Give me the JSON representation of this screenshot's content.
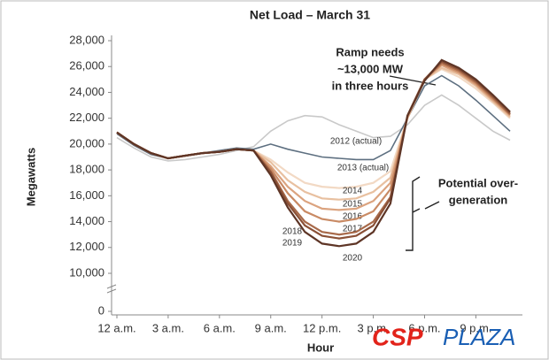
{
  "chart_data": {
    "type": "line",
    "title": "Net Load – March 31",
    "x_label": "Hour",
    "y_label": "Megawatts",
    "x": [
      0,
      1,
      2,
      3,
      4,
      5,
      6,
      7,
      8,
      9,
      10,
      11,
      12,
      13,
      14,
      15,
      16,
      17,
      18,
      19,
      20,
      21,
      22,
      23
    ],
    "xlim": [
      0,
      23
    ],
    "xticks": [
      {
        "value": 0,
        "label": "12 a.m."
      },
      {
        "value": 3,
        "label": "3 a.m."
      },
      {
        "value": 6,
        "label": "6 a.m."
      },
      {
        "value": 9,
        "label": "9 a.m."
      },
      {
        "value": 12,
        "label": "12 p.m."
      },
      {
        "value": 15,
        "label": "3 p.m."
      },
      {
        "value": 18,
        "label": "6 p.m."
      },
      {
        "value": 21,
        "label": "9 p.m."
      }
    ],
    "ylim": [
      0,
      28000
    ],
    "axis_break": true,
    "yticks": [
      0,
      {
        "value": 10000,
        "label": "10,000"
      },
      {
        "value": 12000,
        "label": "12,000"
      },
      {
        "value": 14000,
        "label": "14,000"
      },
      {
        "value": 16000,
        "label": "16,000"
      },
      {
        "value": 18000,
        "label": "18,000"
      },
      {
        "value": 20000,
        "label": "20,000"
      },
      {
        "value": 22000,
        "label": "22,000"
      },
      {
        "value": 24000,
        "label": "24,000"
      },
      {
        "value": 26000,
        "label": "26,000"
      },
      {
        "value": 28000,
        "label": "28,000"
      }
    ],
    "series": [
      {
        "name": "2012 (actual)",
        "color": "#c9c9c9",
        "values": [
          20500,
          19700,
          19000,
          18700,
          18800,
          19000,
          19200,
          19500,
          19800,
          21000,
          21800,
          22200,
          22100,
          21500,
          21000,
          20500,
          20600,
          21500,
          23000,
          23800,
          23000,
          22000,
          21000,
          20300
        ]
      },
      {
        "name": "2013 (actual)",
        "color": "#5d6f80",
        "values": [
          20800,
          19900,
          19200,
          18900,
          19100,
          19300,
          19500,
          19700,
          19600,
          20000,
          19600,
          19300,
          19000,
          18900,
          18800,
          18800,
          19500,
          22000,
          24500,
          25300,
          24500,
          23400,
          22200,
          21000
        ]
      },
      {
        "name": "2014",
        "color": "#f2d9c4",
        "values": [
          20900,
          20000,
          19300,
          18900,
          19100,
          19300,
          19400,
          19600,
          19500,
          18800,
          17800,
          17000,
          16700,
          16600,
          16700,
          17000,
          17900,
          22000,
          25000,
          25800,
          25200,
          24300,
          23200,
          22000
        ]
      },
      {
        "name": "2015",
        "color": "#e8c0a0",
        "values": [
          20900,
          20000,
          19300,
          18900,
          19100,
          19300,
          19400,
          19600,
          19500,
          18600,
          17200,
          16300,
          15800,
          15700,
          15800,
          16300,
          17400,
          22000,
          25000,
          25900,
          25400,
          24500,
          23300,
          22100
        ]
      },
      {
        "name": "2016",
        "color": "#dba37f",
        "values": [
          20900,
          20000,
          19300,
          18900,
          19100,
          19300,
          19400,
          19600,
          19500,
          18300,
          16700,
          15600,
          15000,
          14900,
          15000,
          15600,
          17000,
          22100,
          25000,
          26100,
          25500,
          24600,
          23400,
          22200
        ]
      },
      {
        "name": "2017",
        "color": "#c98a64",
        "values": [
          20900,
          20000,
          19300,
          18900,
          19100,
          19300,
          19400,
          19600,
          19500,
          18100,
          16200,
          14800,
          14200,
          14000,
          14200,
          14800,
          16500,
          22100,
          25000,
          26200,
          25600,
          24700,
          23500,
          22300
        ]
      },
      {
        "name": "2018",
        "color": "#a86a4a",
        "values": [
          20900,
          20000,
          19300,
          18900,
          19100,
          19300,
          19400,
          19600,
          19500,
          17900,
          15600,
          14000,
          13200,
          13000,
          13200,
          14000,
          15900,
          22200,
          25000,
          26300,
          25700,
          24800,
          23600,
          22300
        ]
      },
      {
        "name": "2019",
        "color": "#8a5036",
        "values": [
          20900,
          20000,
          19300,
          18900,
          19100,
          19300,
          19400,
          19600,
          19500,
          17800,
          15400,
          13700,
          12900,
          12700,
          12900,
          13700,
          15800,
          22200,
          25000,
          26400,
          25800,
          24900,
          23700,
          22400
        ]
      },
      {
        "name": "2020",
        "color": "#5e3526",
        "values": [
          20900,
          20000,
          19300,
          18900,
          19100,
          19300,
          19400,
          19600,
          19500,
          17600,
          15100,
          13200,
          12300,
          12100,
          12300,
          13200,
          15400,
          22200,
          24900,
          26500,
          25900,
          25000,
          23800,
          22500
        ]
      }
    ],
    "annotations": [
      {
        "lines": [
          "Ramp needs",
          "~13,000 MW",
          "in three hours"
        ]
      },
      {
        "lines": [
          "Potential over-",
          "generation"
        ]
      }
    ]
  },
  "watermark": {
    "first": "CSP",
    "second": "PLAZA"
  }
}
